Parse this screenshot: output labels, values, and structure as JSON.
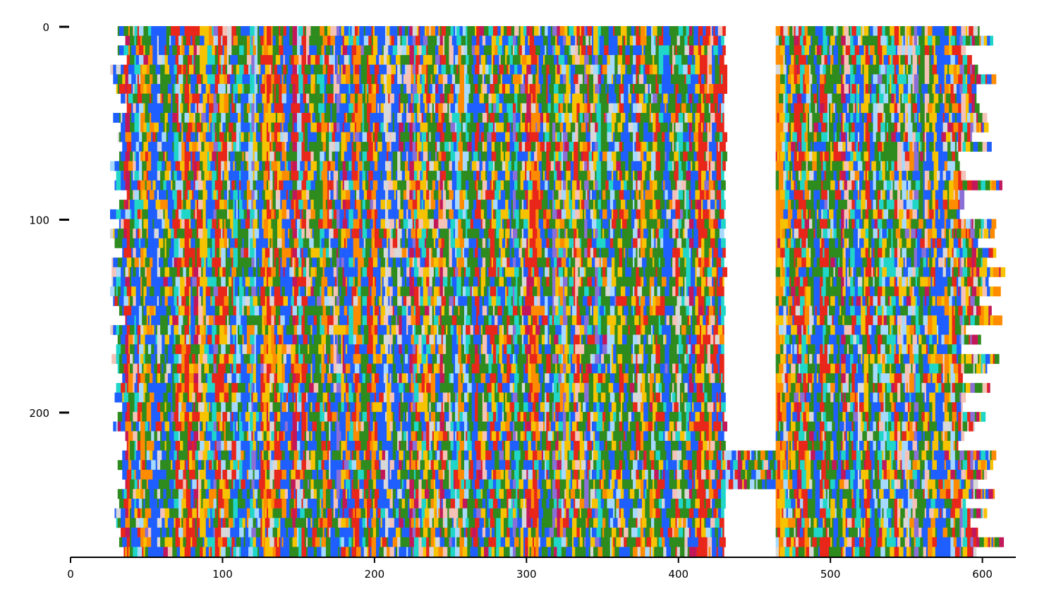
{
  "chart_data": {
    "type": "heatmap",
    "title": "",
    "xlabel": "",
    "ylabel": "",
    "xlim": [
      0,
      622
    ],
    "ylim": [
      275,
      0
    ],
    "x_ticks": [
      0,
      100,
      200,
      300,
      400,
      500,
      600
    ],
    "y_ticks": [
      0,
      100,
      200
    ],
    "x_tick_labels": [
      "0",
      "100",
      "200",
      "300",
      "400",
      "500",
      "600"
    ],
    "y_tick_labels": [
      "0",
      "100",
      "200"
    ],
    "n_rows": 275,
    "n_cols": 622,
    "dense_columns": [
      [
        34,
        430
      ],
      [
        464,
        584
      ]
    ],
    "gap_columns": [
      [
        430,
        464
      ]
    ],
    "insertion_rows": [
      [
        216,
        238
      ]
    ],
    "colors": [
      "#2e8b1e",
      "#1f5fff",
      "#e8261a",
      "#f7c300",
      "#ff8c00",
      "#1fd6c8",
      "#a6d9ff",
      "#f5c2b8",
      "#d8d8d8",
      "#c2185b",
      "#8a6fd6"
    ]
  }
}
